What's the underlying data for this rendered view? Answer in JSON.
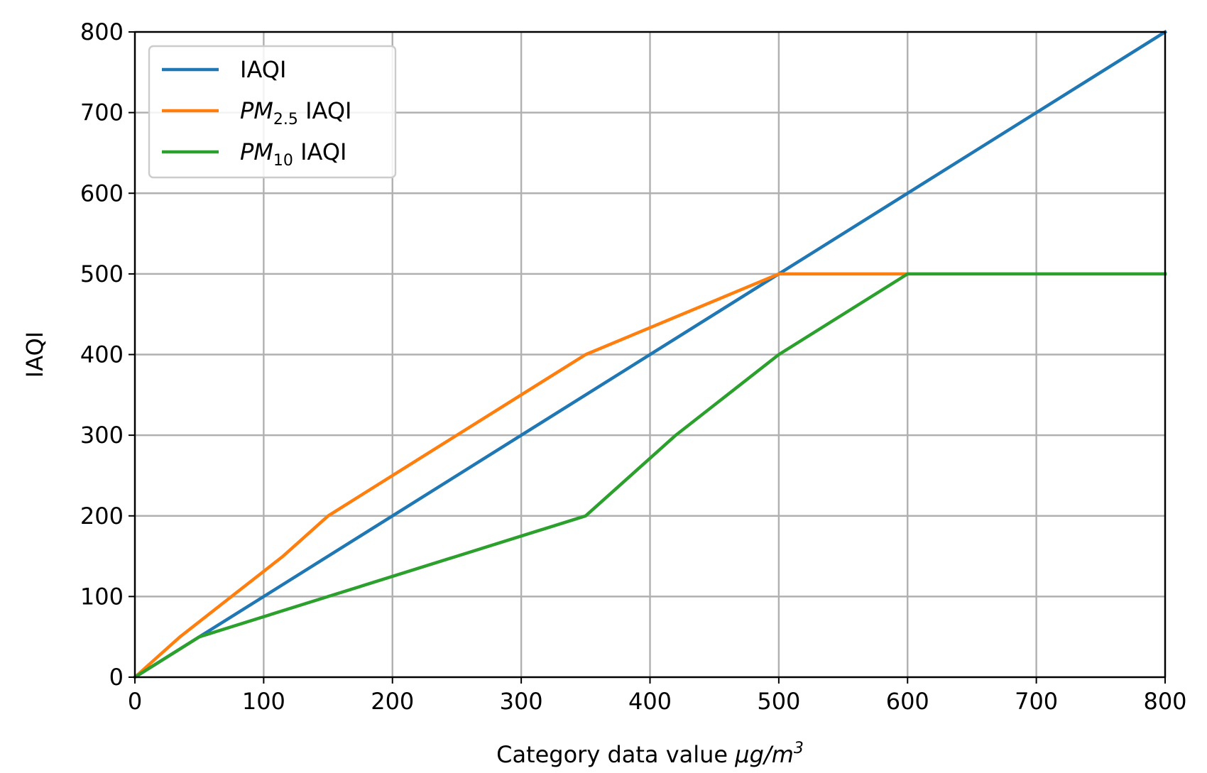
{
  "chart_data": {
    "type": "line",
    "xlabel_prefix": "Category data value ",
    "xlabel_unit_base": "μg/m",
    "xlabel_unit_exp": "3",
    "ylabel": "IAQI",
    "xlim": [
      0,
      800
    ],
    "ylim": [
      0,
      800
    ],
    "x_ticks": [
      0,
      100,
      200,
      300,
      400,
      500,
      600,
      700,
      800
    ],
    "y_ticks": [
      0,
      100,
      200,
      300,
      400,
      500,
      600,
      700,
      800
    ],
    "grid": true,
    "legend_position": "top-left",
    "series": [
      {
        "name_main": "IAQI",
        "name_sub": "",
        "name_suffix": "",
        "color": "#1f77b4",
        "points": [
          [
            0,
            0
          ],
          [
            800,
            800
          ]
        ]
      },
      {
        "name_main": "PM",
        "name_sub": "2.5",
        "name_suffix": " IAQI",
        "color": "#ff7f0e",
        "points": [
          [
            0,
            0
          ],
          [
            35,
            50
          ],
          [
            75,
            100
          ],
          [
            115,
            150
          ],
          [
            150,
            200
          ],
          [
            250,
            300
          ],
          [
            350,
            400
          ],
          [
            500,
            500
          ],
          [
            600,
            500
          ]
        ]
      },
      {
        "name_main": "PM",
        "name_sub": "10",
        "name_suffix": " IAQI",
        "color": "#2ca02c",
        "points": [
          [
            0,
            0
          ],
          [
            50,
            50
          ],
          [
            150,
            100
          ],
          [
            250,
            150
          ],
          [
            350,
            200
          ],
          [
            420,
            300
          ],
          [
            500,
            400
          ],
          [
            600,
            500
          ],
          [
            800,
            500
          ]
        ]
      }
    ]
  }
}
